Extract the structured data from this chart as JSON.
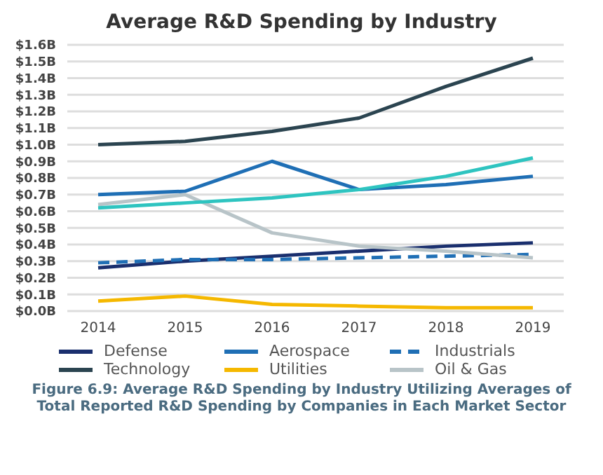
{
  "chart_data": {
    "type": "line",
    "title": "Average R&D Spending by Industry",
    "categories": [
      "2014",
      "2015",
      "2016",
      "2017",
      "2018",
      "2019"
    ],
    "series": [
      {
        "name": "Defense",
        "color": "#1a2f6e",
        "values": [
          0.26,
          0.3,
          0.33,
          0.36,
          0.39,
          0.41
        ]
      },
      {
        "name": "Aerospace",
        "color": "#1f6fb5",
        "values": [
          0.7,
          0.72,
          0.9,
          0.73,
          0.76,
          0.81
        ]
      },
      {
        "name": "Industrials",
        "color": "#1f6fb5",
        "line_style": "dashed",
        "values": [
          0.29,
          0.31,
          0.31,
          0.32,
          0.33,
          0.34
        ]
      },
      {
        "name": "Technology",
        "color": "#2b4450",
        "values": [
          1.0,
          1.02,
          1.08,
          1.16,
          1.35,
          1.52
        ]
      },
      {
        "name": "Utilities",
        "color": "#f5b800",
        "values": [
          0.06,
          0.09,
          0.04,
          0.03,
          0.02,
          0.02
        ]
      },
      {
        "name": "Oil & Gas",
        "color": "#b8c4c8",
        "values": [
          0.64,
          0.7,
          0.47,
          0.39,
          0.36,
          0.32
        ]
      },
      {
        "color": "#2ec4c0",
        "values": [
          0.62,
          0.65,
          0.68,
          0.73,
          0.81,
          0.92
        ]
      }
    ],
    "ylim": [
      0,
      1.6
    ],
    "yticks": [
      {
        "value": 0,
        "label": "$0.0B"
      },
      {
        "value": 0.1,
        "label": "$0.1B"
      },
      {
        "value": 0.2,
        "label": "$0.2B"
      },
      {
        "value": 0.3,
        "label": "$0.3B"
      },
      {
        "value": 0.4,
        "label": "$0.4B"
      },
      {
        "value": 0.5,
        "label": "$0.5B"
      },
      {
        "value": 0.6,
        "label": "$0.6B"
      },
      {
        "value": 0.7,
        "label": "$0.7B"
      },
      {
        "value": 0.8,
        "label": "$0.8B"
      },
      {
        "value": 0.9,
        "label": "$0.9B"
      },
      {
        "value": 1.0,
        "label": "$1.0B"
      },
      {
        "value": 1.1,
        "label": "$1.1B"
      },
      {
        "value": 1.2,
        "label": "$1.2B"
      },
      {
        "value": 1.3,
        "label": "$1.3B"
      },
      {
        "value": 1.4,
        "label": "$1.4B"
      },
      {
        "value": 1.5,
        "label": "$1.5B"
      },
      {
        "value": 1.6,
        "label": "$1.6B"
      }
    ],
    "grid": "y",
    "legend": "bottom",
    "marker": "none",
    "line_style": "solid",
    "annotations": [
      "Figure 6.9: Average R&D Spending by Industry Utilizing Averages of Total Reported R&D Spending by Companies in Each Market Sector"
    ]
  }
}
